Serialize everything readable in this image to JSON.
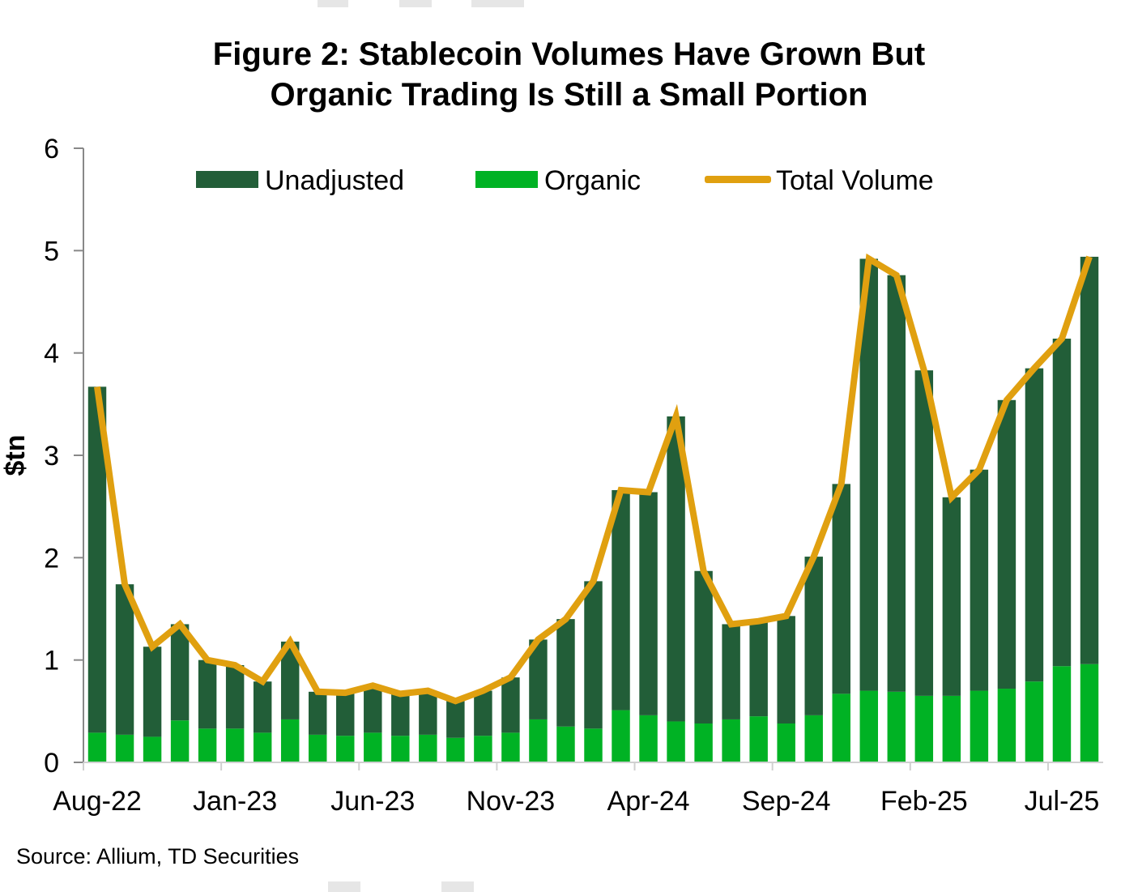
{
  "chart_data": {
    "type": "bar",
    "stacked": true,
    "title": "Figure 2: Stablecoin Volumes Have Grown But Organic Trading Is Still a Small Portion",
    "title_lines": [
      "Figure 2: Stablecoin Volumes Have Grown But",
      "Organic Trading Is Still a Small Portion"
    ],
    "xlabel": "",
    "ylabel": "$tn",
    "ylim": [
      0,
      6
    ],
    "yticks": [
      0,
      1,
      2,
      3,
      4,
      5,
      6
    ],
    "grid": false,
    "legend_position": "top",
    "x_tick_labels": [
      "Aug-22",
      "Jan-23",
      "Jun-23",
      "Nov-23",
      "Apr-24",
      "Sep-24",
      "Feb-25",
      "Jul-25"
    ],
    "categories": [
      "Aug-22",
      "Sep-22",
      "Oct-22",
      "Nov-22",
      "Dec-22",
      "Jan-23",
      "Feb-23",
      "Mar-23",
      "Apr-23",
      "May-23",
      "Jun-23",
      "Jul-23",
      "Aug-23",
      "Sep-23",
      "Oct-23",
      "Nov-23",
      "Dec-23",
      "Jan-24",
      "Feb-24",
      "Mar-24",
      "Apr-24",
      "May-24",
      "Jun-24",
      "Jul-24",
      "Aug-24",
      "Sep-24",
      "Oct-24",
      "Nov-24",
      "Dec-24",
      "Jan-25",
      "Feb-25",
      "Mar-25",
      "Apr-25",
      "May-25",
      "Jun-25",
      "Jul-25",
      "Aug-25"
    ],
    "series": [
      {
        "name": "Organic",
        "kind": "bar",
        "color": "#00b224",
        "values": [
          0.29,
          0.27,
          0.25,
          0.41,
          0.33,
          0.33,
          0.29,
          0.42,
          0.27,
          0.26,
          0.29,
          0.26,
          0.27,
          0.24,
          0.26,
          0.29,
          0.42,
          0.35,
          0.33,
          0.51,
          0.46,
          0.4,
          0.38,
          0.42,
          0.45,
          0.38,
          0.46,
          0.67,
          0.7,
          0.69,
          0.65,
          0.65,
          0.7,
          0.72,
          0.79,
          0.94,
          0.96
        ]
      },
      {
        "name": "Unadjusted",
        "kind": "bar",
        "color": "#225e38",
        "values": [
          3.38,
          1.47,
          0.88,
          0.94,
          0.67,
          0.62,
          0.5,
          0.76,
          0.42,
          0.42,
          0.46,
          0.41,
          0.43,
          0.36,
          0.44,
          0.54,
          0.78,
          1.05,
          1.44,
          2.15,
          2.18,
          2.98,
          1.49,
          0.93,
          0.93,
          1.05,
          1.55,
          2.05,
          4.22,
          4.07,
          3.18,
          1.94,
          2.16,
          2.82,
          3.06,
          3.2,
          3.98
        ]
      },
      {
        "name": "Total Volume",
        "kind": "line",
        "color": "#e0a010",
        "values": [
          3.67,
          1.74,
          1.13,
          1.35,
          1.0,
          0.95,
          0.79,
          1.18,
          0.69,
          0.68,
          0.75,
          0.67,
          0.7,
          0.6,
          0.7,
          0.83,
          1.2,
          1.4,
          1.77,
          2.66,
          2.64,
          3.38,
          1.87,
          1.35,
          1.38,
          1.43,
          2.01,
          2.72,
          4.92,
          4.76,
          3.83,
          2.59,
          2.86,
          3.54,
          3.85,
          4.14,
          4.94
        ]
      }
    ]
  },
  "legend": {
    "items": [
      {
        "label": "Unadjusted",
        "color": "#225e38"
      },
      {
        "label": "Organic",
        "color": "#00b224"
      },
      {
        "label": "Total Volume",
        "color": "#e0a010"
      }
    ]
  },
  "source": "Source: Allium, TD Securities"
}
